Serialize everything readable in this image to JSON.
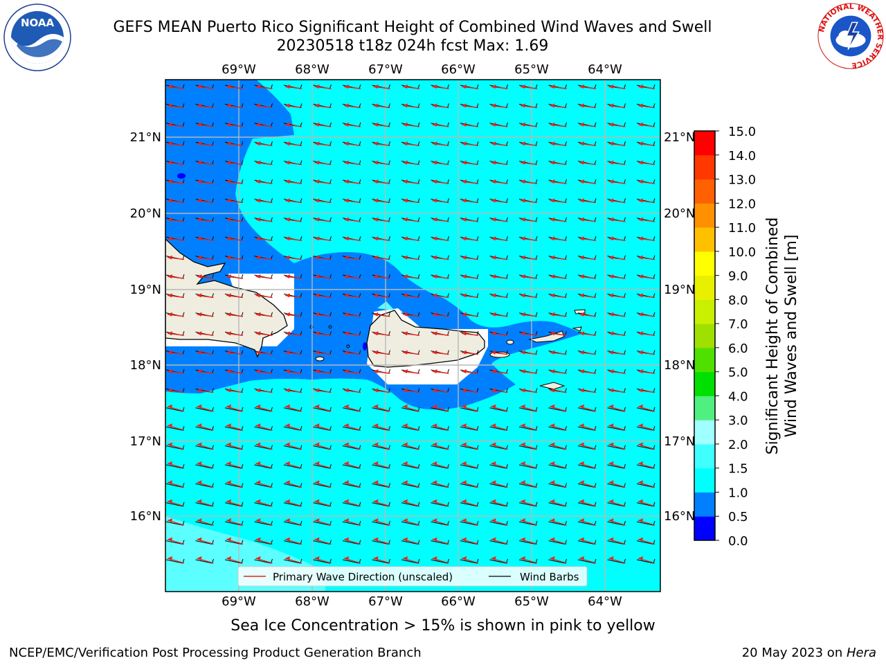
{
  "title": {
    "line1": "GEFS MEAN Puerto Rico Significant Height of Combined Wind Waves and Swell",
    "line2": "20230518 t18z 024h fcst   Max: 1.69"
  },
  "map": {
    "lon_ticks": [
      "69°W",
      "68°W",
      "67°W",
      "66°W",
      "65°W",
      "64°W"
    ],
    "lat_ticks": [
      "21°N",
      "20°N",
      "19°N",
      "18°N",
      "17°N",
      "16°N"
    ],
    "legend": {
      "wave_label": "Primary Wave Direction (unscaled)",
      "barb_label": "Wind Barbs",
      "wave_color": "#e8231a",
      "barb_color": "#000000"
    }
  },
  "colorbar": {
    "label_line1": "Significant Height of Combined",
    "label_line2": "Wind Waves and Swell [m]",
    "ticks": [
      "0.0",
      "0.5",
      "1.0",
      "1.5",
      "2.0",
      "3.0",
      "4.0",
      "5.0",
      "6.0",
      "7.0",
      "8.0",
      "9.0",
      "10.0",
      "11.0",
      "12.0",
      "13.0",
      "14.0",
      "15.0"
    ],
    "colors": [
      "#0000ff",
      "#0080ff",
      "#00ffff",
      "#40ffff",
      "#a0ffff",
      "#50f080",
      "#00e000",
      "#50e000",
      "#a0e000",
      "#c8f000",
      "#e8f000",
      "#ffff00",
      "#ffc000",
      "#ff9000",
      "#ff6000",
      "#ff3800",
      "#ff0000"
    ]
  },
  "sea_ice_note": "Sea Ice Concentration > 15% is shown in pink to yellow",
  "footer": {
    "left": "NCEP/EMC/Verification Post Processing Product Generation Branch",
    "right_prefix": "20 May 2023 on ",
    "right_host": "Hera"
  },
  "logos": {
    "noaa": "NOAA",
    "nws": "NATIONAL WEATHER SERVICE"
  }
}
